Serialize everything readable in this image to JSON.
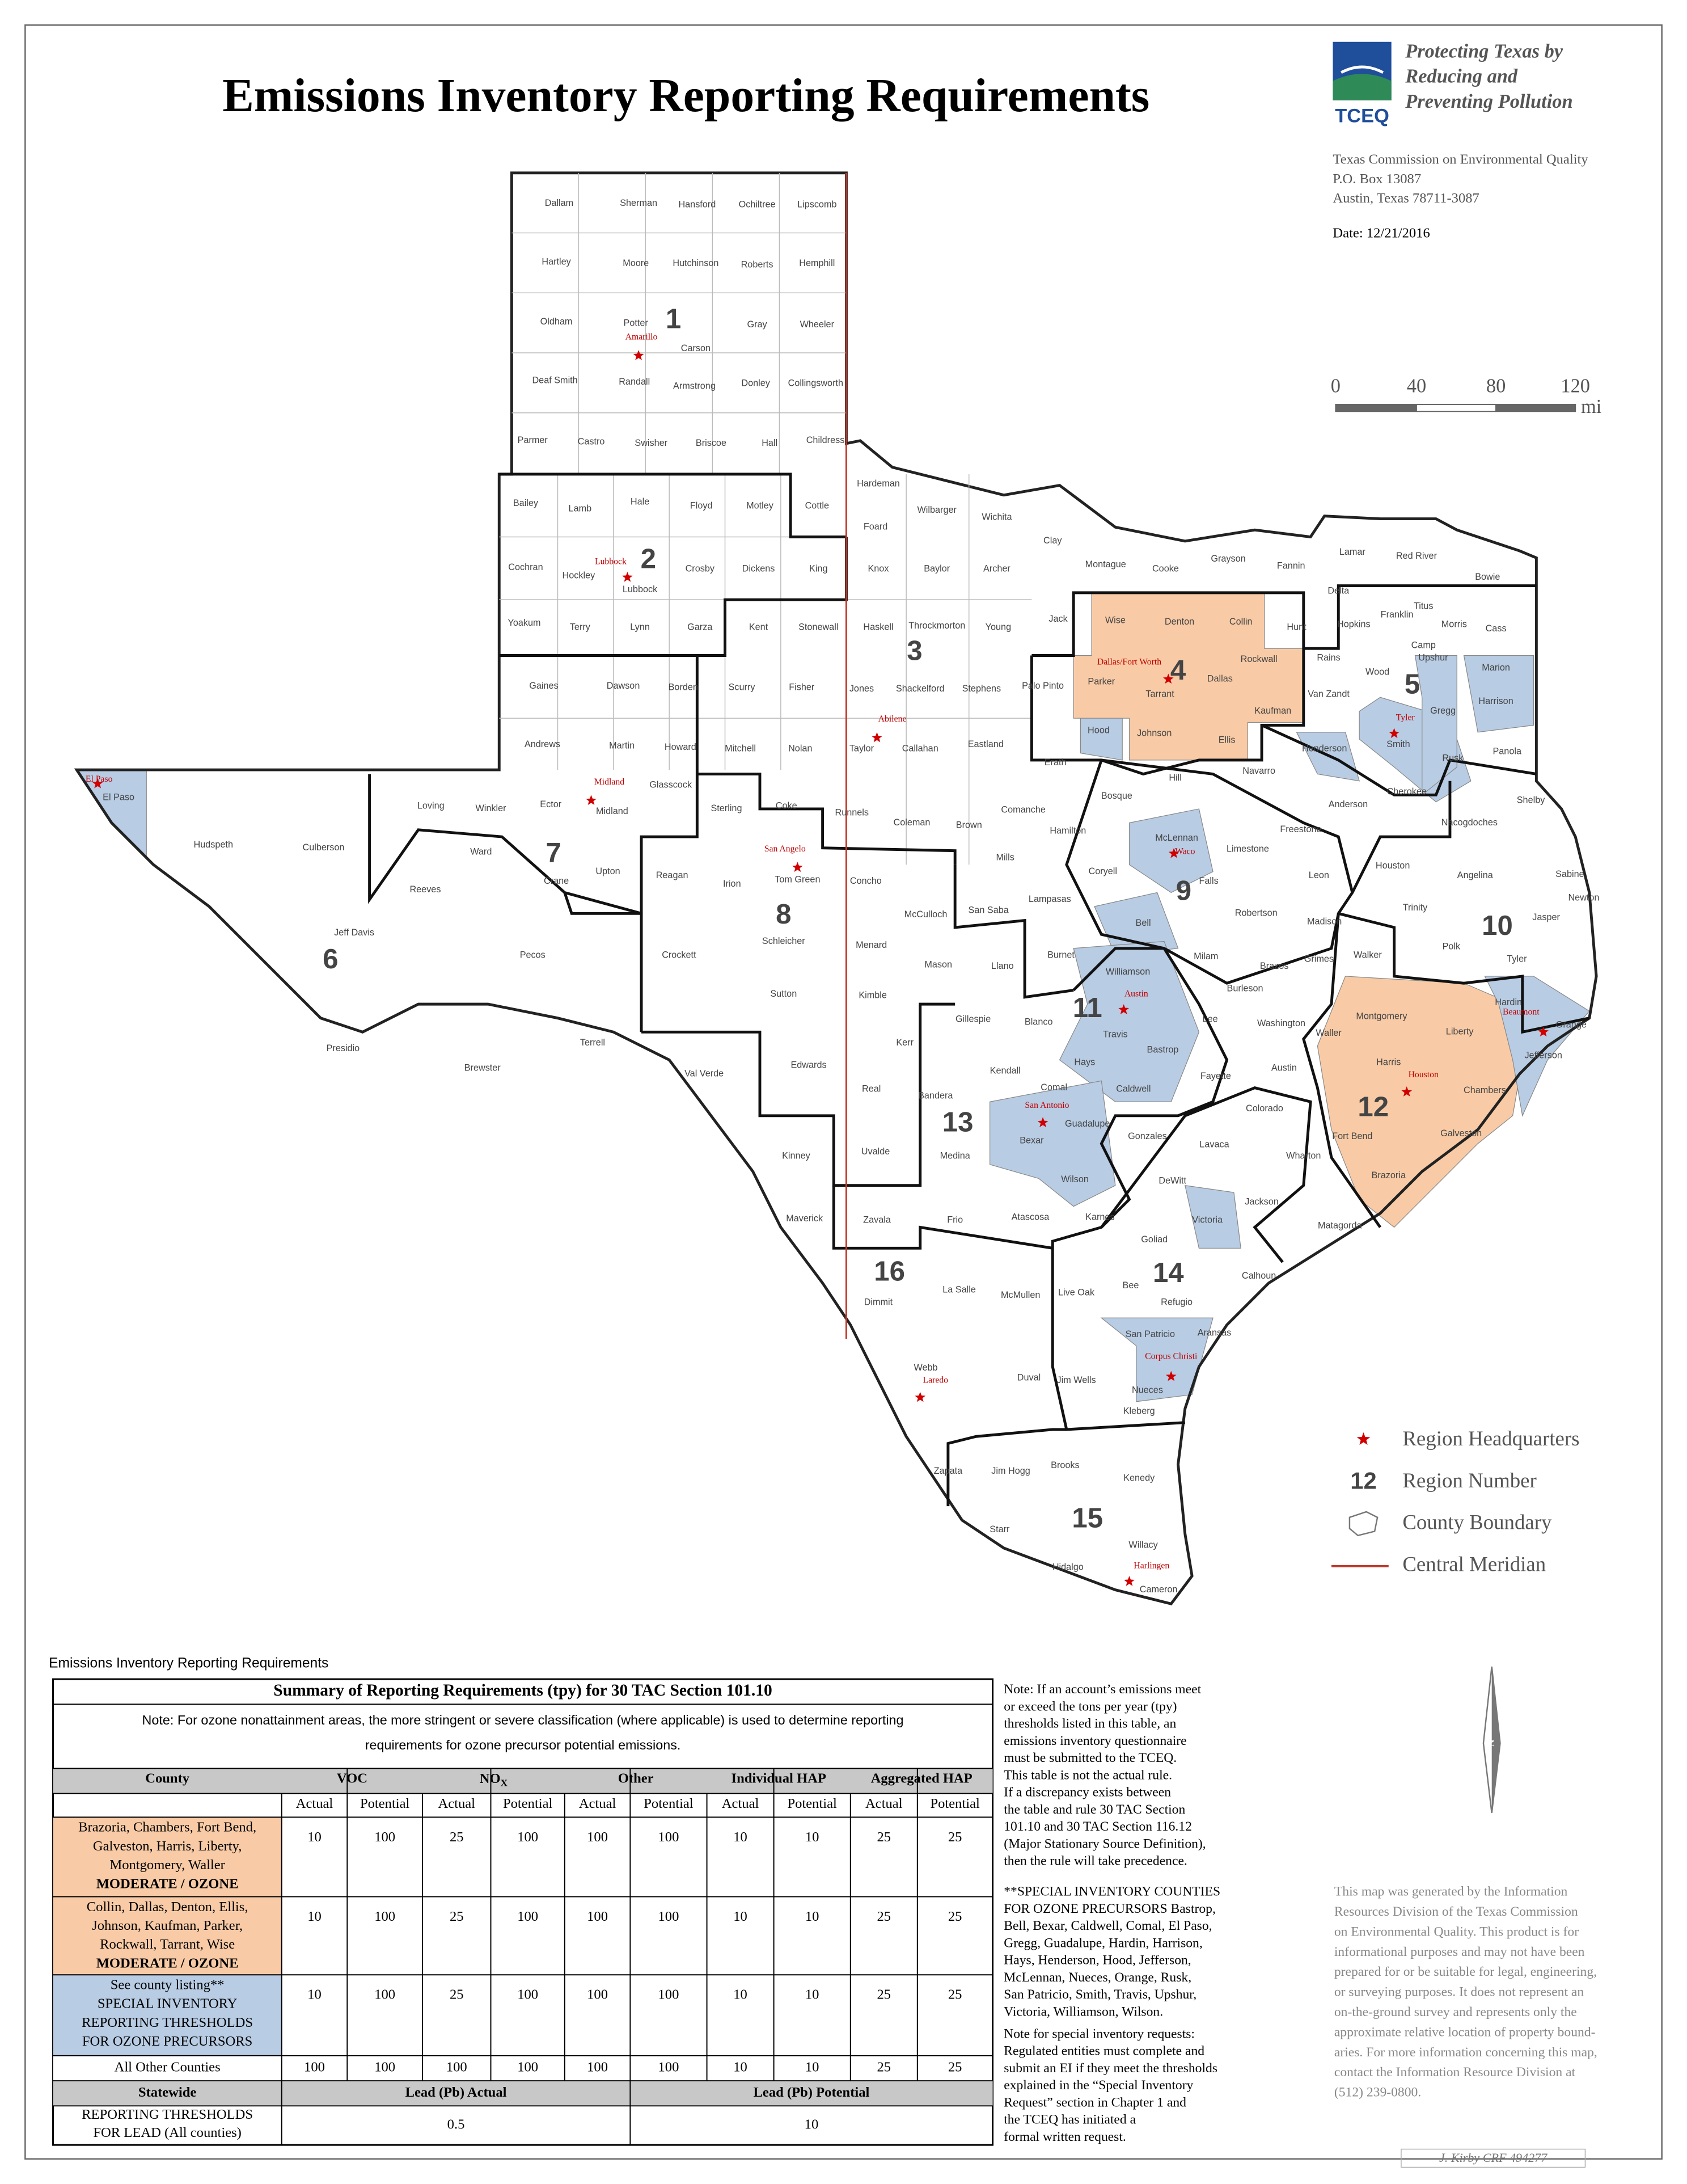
{
  "header": {
    "title": "Emissions Inventory Reporting Requirements",
    "slogan": [
      "Protecting Texas by",
      "Reducing and",
      "Preventing Pollution"
    ],
    "logo": "TCEQ",
    "address": [
      "Texas Commission on Environmental Quality",
      "P.O. Box 13087",
      "Austin, Texas 78711-3087"
    ],
    "date": "Date: 12/21/2016"
  },
  "scale_bar": {
    "labels": [
      "0",
      "40",
      "80",
      "120"
    ],
    "unit": "mi"
  },
  "map": {
    "counties": [
      "Dallam",
      "Sherman",
      "Hansford",
      "Ochiltree",
      "Lipscomb",
      "Hartley",
      "Moore",
      "Hutchinson",
      "Roberts",
      "Hemphill",
      "Oldham",
      "Potter",
      "Carson",
      "Gray",
      "Wheeler",
      "Deaf Smith",
      "Randall",
      "Armstrong",
      "Donley",
      "Collingsworth",
      "Parmer",
      "Castro",
      "Swisher",
      "Briscoe",
      "Hall",
      "Childress",
      "Bailey",
      "Lamb",
      "Hale",
      "Floyd",
      "Motley",
      "Cottle",
      "Hardeman",
      "Foard",
      "Wilbarger",
      "Wichita",
      "Clay",
      "Cochran",
      "Hockley",
      "Lubbock",
      "Crosby",
      "Dickens",
      "King",
      "Knox",
      "Baylor",
      "Archer",
      "Montague",
      "Cooke",
      "Grayson",
      "Fannin",
      "Lamar",
      "Red River",
      "Bowie",
      "Yoakum",
      "Terry",
      "Lynn",
      "Garza",
      "Kent",
      "Stonewall",
      "Haskell",
      "Throckmorton",
      "Young",
      "Jack",
      "Wise",
      "Denton",
      "Collin",
      "Hunt",
      "Delta",
      "Hopkins",
      "Franklin",
      "Titus",
      "Morris",
      "Cass",
      "Camp",
      "Gaines",
      "Dawson",
      "Borden",
      "Scurry",
      "Fisher",
      "Jones",
      "Shackelford",
      "Stephens",
      "Palo Pinto",
      "Parker",
      "Tarrant",
      "Dallas",
      "Rockwall",
      "Kaufman",
      "Van Zandt",
      "Rains",
      "Wood",
      "Upshur",
      "Marion",
      "Gregg",
      "Harrison",
      "Andrews",
      "Martin",
      "Howard",
      "Mitchell",
      "Nolan",
      "Taylor",
      "Callahan",
      "Eastland",
      "Erath",
      "Hood",
      "Johnson",
      "Ellis",
      "Navarro",
      "Henderson",
      "Smith",
      "Rusk",
      "Panola",
      "El Paso",
      "Loving",
      "Winkler",
      "Ector",
      "Midland",
      "Glasscock",
      "Sterling",
      "Coke",
      "Runnels",
      "Coleman",
      "Brown",
      "Comanche",
      "Hamilton",
      "Bosque",
      "Hill",
      "Cherokee",
      "Anderson",
      "Shelby",
      "Nacogdoches",
      "Hudspeth",
      "Culberson",
      "Ward",
      "Crane",
      "Upton",
      "Reagan",
      "Irion",
      "Tom Green",
      "Concho",
      "Mills",
      "Coryell",
      "McLennan",
      "Limestone",
      "Freestone",
      "Leon",
      "Houston",
      "Angelina",
      "Sabine",
      "Reeves",
      "Lampasas",
      "Falls",
      "Robertson",
      "Madison",
      "Trinity",
      "Jasper",
      "Newton",
      "Jeff Davis",
      "Pecos",
      "Crockett",
      "Schleicher",
      "Menard",
      "McCulloch",
      "San Saba",
      "Bell",
      "Milam",
      "Brazos",
      "Grimes",
      "Walker",
      "Polk",
      "Tyler",
      "Burnet",
      "Mason",
      "Llano",
      "Williamson",
      "Burleson",
      "Montgomery",
      "Liberty",
      "Hardin",
      "Orange",
      "Jefferson",
      "Presidio",
      "Terrell",
      "Brewster",
      "Sutton",
      "Kimble",
      "Gillespie",
      "Blanco",
      "Travis",
      "Bastrop",
      "Lee",
      "Washington",
      "Waller",
      "Harris",
      "Chambers",
      "Val Verde",
      "Edwards",
      "Kerr",
      "Kendall",
      "Hays",
      "Comal",
      "Caldwell",
      "Fayette",
      "Austin",
      "Real",
      "Bandera",
      "Guadalupe",
      "Bexar",
      "Colorado",
      "Gonzales",
      "Lavaca",
      "Fort Bend",
      "Galveston",
      "Wharton",
      "Brazoria",
      "Kinney",
      "Uvalde",
      "Medina",
      "Wilson",
      "DeWitt",
      "Jackson",
      "Matagorda",
      "Maverick",
      "Zavala",
      "Frio",
      "Atascosa",
      "Karnes",
      "Victoria",
      "Goliad",
      "Calhoun",
      "Dimmit",
      "La Salle",
      "McMullen",
      "Live Oak",
      "Bee",
      "Refugio",
      "San Patricio",
      "Aransas",
      "Webb",
      "Duval",
      "Jim Wells",
      "Nueces",
      "Kleberg",
      "Zapata",
      "Jim Hogg",
      "Brooks",
      "Kenedy",
      "Starr",
      "Hidalgo",
      "Willacy",
      "Cameron"
    ],
    "headquarters": [
      "Amarillo",
      "Lubbock",
      "Abilene",
      "Midland",
      "El Paso",
      "San Angelo",
      "Dallas/Fort Worth",
      "Tyler",
      "Waco",
      "Austin",
      "Beaumont",
      "Houston",
      "San Antonio",
      "Corpus Christi",
      "Laredo",
      "Harlingen"
    ],
    "regions": [
      1,
      2,
      3,
      4,
      5,
      6,
      7,
      8,
      9,
      10,
      11,
      12,
      13,
      14,
      15,
      16
    ],
    "north": "N"
  },
  "legend": {
    "items": [
      "Region Headquarters",
      "Region Number",
      "County Boundary",
      "Central Meridian"
    ],
    "region_number_sample": "12"
  },
  "table": {
    "caption": "Emissions Inventory Reporting Requirements",
    "title": "Summary of Reporting Requirements (tpy) for 30 TAC Section 101.10",
    "note": [
      "Note: For ozone nonattainment areas, the more stringent or severe classification (where applicable) is used to determine reporting",
      "requirements for ozone precursor potential emissions."
    ],
    "county_header": "County",
    "groups": [
      "VOC",
      {
        "main": "NO",
        "sub": "X"
      },
      "Other",
      "Individual HAP",
      "Aggregated HAP"
    ],
    "subcolumns": [
      "Actual",
      "Potential",
      "Actual",
      "Potential",
      "Actual",
      "Potential",
      "Actual",
      "Potential",
      "Actual",
      "Potential"
    ],
    "rows": [
      {
        "county": [
          "Brazoria, Chambers, Fort Bend,",
          "Galveston, Harris, Liberty,",
          "Montgomery, Waller",
          "MODERATE / OZONE"
        ],
        "values": [
          10,
          100,
          25,
          100,
          100,
          100,
          10,
          10,
          25,
          25
        ]
      },
      {
        "county": [
          "Collin, Dallas, Denton, Ellis,",
          "Johnson, Kaufman, Parker,",
          "Rockwall, Tarrant, Wise",
          "MODERATE / OZONE"
        ],
        "values": [
          10,
          100,
          25,
          100,
          100,
          100,
          10,
          10,
          25,
          25
        ]
      },
      {
        "county": [
          "See county listing**",
          "SPECIAL INVENTORY",
          "REPORTING THRESHOLDS",
          "FOR OZONE PRECURSORS"
        ],
        "values": [
          10,
          100,
          25,
          100,
          100,
          100,
          10,
          10,
          25,
          25
        ]
      },
      {
        "county": [
          "All Other Counties"
        ],
        "values": [
          100,
          100,
          100,
          100,
          100,
          100,
          10,
          10,
          25,
          25
        ]
      }
    ],
    "statewide_header": [
      "Statewide",
      "Lead (Pb) Actual",
      "Lead (Pb) Potential"
    ],
    "lead_row": {
      "label": [
        "REPORTING THRESHOLDS",
        "FOR LEAD (All counties)"
      ],
      "values": [
        0.5,
        10
      ]
    }
  },
  "notes": [
    "Note: If an account’s emissions meet",
    "or exceed the tons per year (tpy)",
    "thresholds listed in this table, an",
    "emissions inventory questionnaire",
    "must be submitted to the TCEQ.",
    "This table is not the actual rule.",
    "If a discrepancy exists between",
    "the table and rule 30 TAC Section",
    "101.10 and 30 TAC Section 116.12",
    "(Major Stationary Source Definition),",
    "then the rule will take precedence."
  ],
  "special_counties": [
    "**SPECIAL INVENTORY COUNTIES",
    "FOR OZONE PRECURSORS Bastrop,",
    "Bell, Bexar, Caldwell, Comal, El Paso,",
    "Gregg, Guadalupe, Hardin, Harrison,",
    "Hays, Henderson, Hood, Jefferson,",
    "McLennan, Nueces, Orange, Rusk,",
    "San Patricio, Smith, Travis, Upshur,",
    "Victoria, Williamson, Wilson."
  ],
  "special_requests": [
    "Note for special inventory requests:",
    "Regulated entities must complete and",
    "submit an EI if they meet the thresholds",
    "explained in the “Special Inventory",
    "Request” section in Chapter 1 and",
    "the TCEQ has initiated a",
    "formal written request."
  ],
  "disclaimer": [
    "This map was generated by the Information",
    "Resources Division of the Texas Commission",
    "on Environmental Quality. This product is for",
    "informational purposes and may not have been",
    "prepared for or be suitable for legal, engineering,",
    "or surveying purposes. It does not represent an",
    "on-the-ground survey and represents only the",
    "approximate relative location of property bound-",
    "aries. For more information concerning this map,",
    "contact the Information Resource Division at",
    "(512) 239-0800."
  ],
  "signature": "J. Kirby  CRF 494277"
}
